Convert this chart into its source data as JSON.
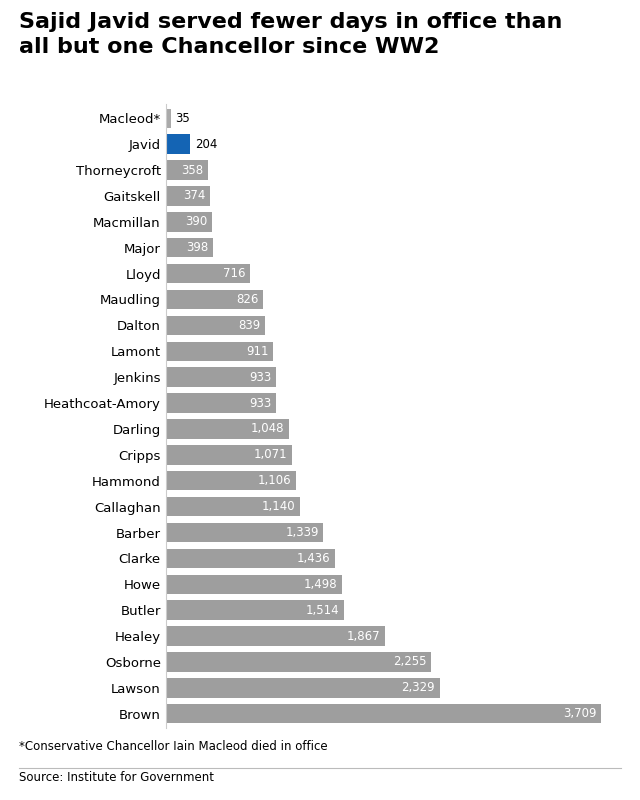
{
  "title": "Sajid Javid served fewer days in office than\nall but one Chancellor since WW2",
  "footnote": "*Conservative Chancellor Iain Macleod died in office",
  "source": "Source: Institute for Government",
  "chancellors": [
    {
      "name": "Macleod*",
      "days": 35,
      "color": "#aaaaaa",
      "label_color": "black",
      "label_outside": true
    },
    {
      "name": "Javid",
      "days": 204,
      "color": "#1464b4",
      "label_color": "black",
      "label_outside": true
    },
    {
      "name": "Thorneycroft",
      "days": 358,
      "color": "#9e9e9e",
      "label_color": "white",
      "label_outside": false
    },
    {
      "name": "Gaitskell",
      "days": 374,
      "color": "#9e9e9e",
      "label_color": "white",
      "label_outside": false
    },
    {
      "name": "Macmillan",
      "days": 390,
      "color": "#9e9e9e",
      "label_color": "white",
      "label_outside": false
    },
    {
      "name": "Major",
      "days": 398,
      "color": "#9e9e9e",
      "label_color": "white",
      "label_outside": false
    },
    {
      "name": "Lloyd",
      "days": 716,
      "color": "#9e9e9e",
      "label_color": "white",
      "label_outside": false
    },
    {
      "name": "Maudling",
      "days": 826,
      "color": "#9e9e9e",
      "label_color": "white",
      "label_outside": false
    },
    {
      "name": "Dalton",
      "days": 839,
      "color": "#9e9e9e",
      "label_color": "white",
      "label_outside": false
    },
    {
      "name": "Lamont",
      "days": 911,
      "color": "#9e9e9e",
      "label_color": "white",
      "label_outside": false
    },
    {
      "name": "Jenkins",
      "days": 933,
      "color": "#9e9e9e",
      "label_color": "white",
      "label_outside": false
    },
    {
      "name": "Heathcoat-Amory",
      "days": 933,
      "color": "#9e9e9e",
      "label_color": "white",
      "label_outside": false
    },
    {
      "name": "Darling",
      "days": 1048,
      "color": "#9e9e9e",
      "label_color": "white",
      "label_outside": false
    },
    {
      "name": "Cripps",
      "days": 1071,
      "color": "#9e9e9e",
      "label_color": "white",
      "label_outside": false
    },
    {
      "name": "Hammond",
      "days": 1106,
      "color": "#9e9e9e",
      "label_color": "white",
      "label_outside": false
    },
    {
      "name": "Callaghan",
      "days": 1140,
      "color": "#9e9e9e",
      "label_color": "white",
      "label_outside": false
    },
    {
      "name": "Barber",
      "days": 1339,
      "color": "#9e9e9e",
      "label_color": "white",
      "label_outside": false
    },
    {
      "name": "Clarke",
      "days": 1436,
      "color": "#9e9e9e",
      "label_color": "white",
      "label_outside": false
    },
    {
      "name": "Howe",
      "days": 1498,
      "color": "#9e9e9e",
      "label_color": "white",
      "label_outside": false
    },
    {
      "name": "Butler",
      "days": 1514,
      "color": "#9e9e9e",
      "label_color": "white",
      "label_outside": false
    },
    {
      "name": "Healey",
      "days": 1867,
      "color": "#9e9e9e",
      "label_color": "white",
      "label_outside": false
    },
    {
      "name": "Osborne",
      "days": 2255,
      "color": "#9e9e9e",
      "label_color": "white",
      "label_outside": false
    },
    {
      "name": "Lawson",
      "days": 2329,
      "color": "#9e9e9e",
      "label_color": "white",
      "label_outside": false
    },
    {
      "name": "Brown",
      "days": 3709,
      "color": "#9e9e9e",
      "label_color": "white",
      "label_outside": false
    }
  ],
  "bg_color": "#ffffff",
  "title_fontsize": 16,
  "bar_label_fontsize": 8.5,
  "name_fontsize": 9.5,
  "footnote_fontsize": 8.5,
  "source_fontsize": 8.5,
  "max_days": 3709
}
